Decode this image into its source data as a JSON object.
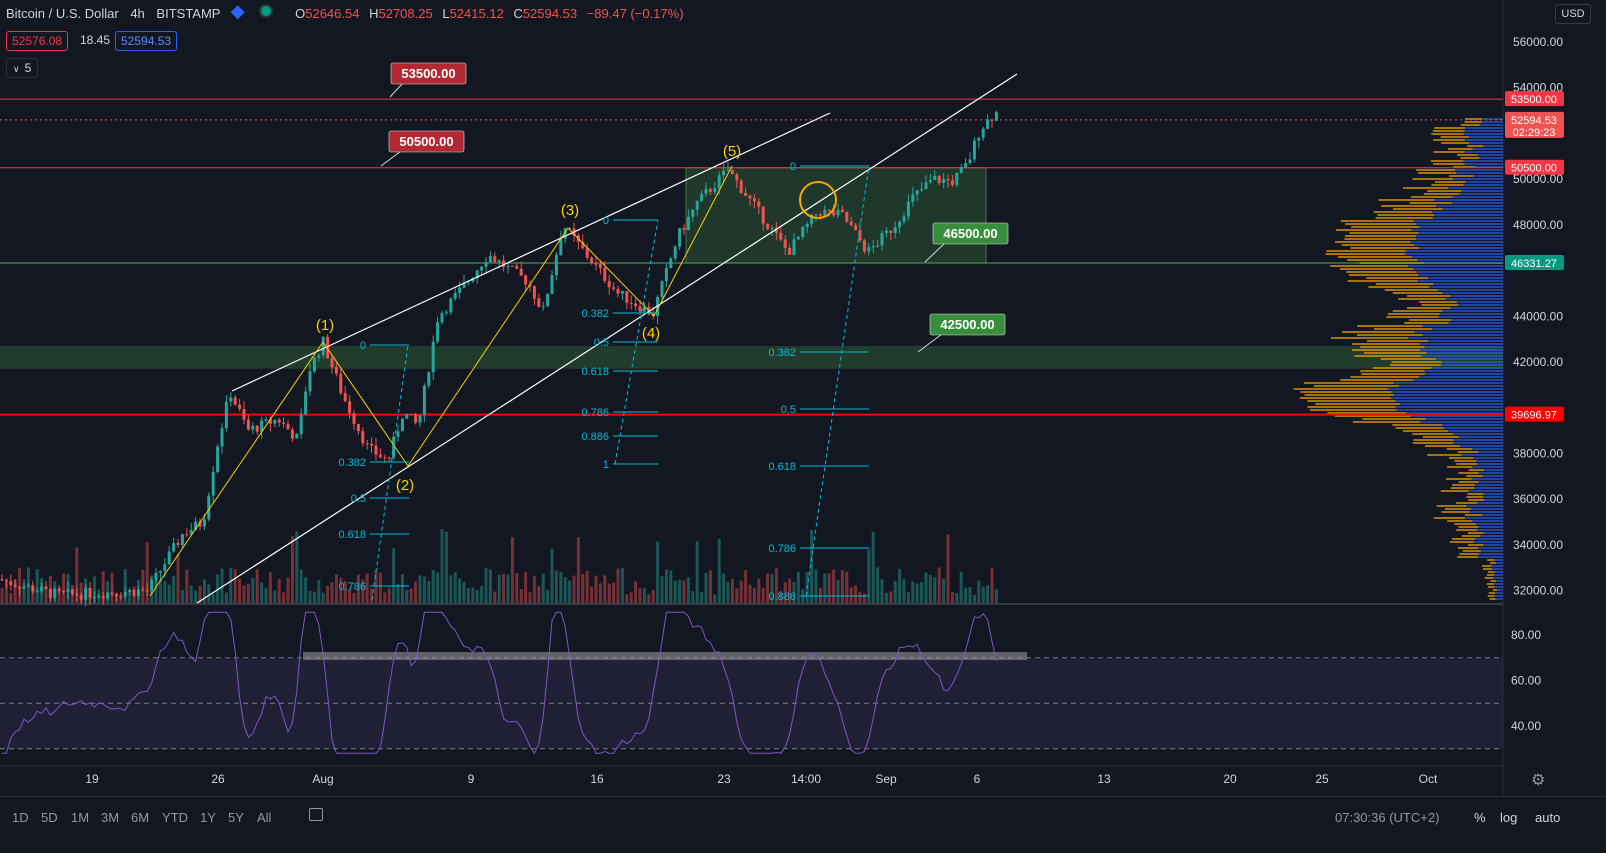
{
  "header": {
    "title": "Bitcoin / U.S. Dollar",
    "interval": "4h",
    "exchange": "BITSTAMP",
    "ohlc": {
      "o_label": "O",
      "o": "52646.54",
      "h_label": "H",
      "h": "52708.25",
      "l_label": "L",
      "l": "52415.12",
      "c_label": "C",
      "c": "52594.53",
      "change": "−89.47 (−0.17%)"
    },
    "bid": "52576.08",
    "spread": "18.45",
    "ask": "52594.53",
    "indicator_count": "5",
    "currency": "USD"
  },
  "chart_data": {
    "type": "candlestick",
    "symbol": "Bitcoin / U.S. Dollar",
    "x_ticks": [
      "19",
      "26",
      "Aug",
      "9",
      "16",
      "23",
      "14:00",
      "Sep",
      "6",
      "13",
      "20",
      "25",
      "Oct"
    ],
    "y_ticks": [
      "56000.00",
      "54000.00",
      "50000.00",
      "48000.00",
      "44000.00",
      "42000.00",
      "38000.00",
      "36000.00",
      "34000.00",
      "32000.00"
    ],
    "ylim": [
      31500,
      57300
    ],
    "price_tags": [
      {
        "value": 53500,
        "label": "53500.00",
        "color": "#f23645"
      },
      {
        "value": 52594.53,
        "label": "52594.53",
        "sub": "02:29:23",
        "color": "#ef5350"
      },
      {
        "value": 50500,
        "label": "50500.00",
        "color": "#f23645"
      },
      {
        "value": 46331.27,
        "label": "46331.27",
        "color": "#089981"
      },
      {
        "value": 39696.97,
        "label": "39696.97",
        "color": "#ff0000"
      }
    ],
    "callouts": [
      "53500.00",
      "50500.00",
      "46500.00",
      "42500.00"
    ],
    "waves": [
      "(1)",
      "(2)",
      "(3)",
      "(4)",
      "(5)"
    ],
    "fib_levels": {
      "first": [
        "0",
        "0.382",
        "0.5",
        "0.618",
        "0.786"
      ],
      "second": [
        "0",
        "0.382",
        "0.5",
        "0.618",
        "0.786",
        "0.886",
        "1"
      ],
      "third": [
        "0",
        "0.382",
        "0.5",
        "0.618",
        "0.786",
        "0.886"
      ]
    },
    "rsi": {
      "y_ticks": [
        "80.00",
        "60.00",
        "40.00"
      ],
      "upper": 70,
      "lower": 30,
      "mid": 50,
      "ylim": [
        26,
        92
      ]
    }
  },
  "bottom": {
    "ranges": [
      "1D",
      "5D",
      "1M",
      "3M",
      "6M",
      "YTD",
      "1Y",
      "5Y",
      "All"
    ],
    "clock": "07:30:36 (UTC+2)",
    "percent": "%",
    "log": "log",
    "auto": "auto"
  }
}
